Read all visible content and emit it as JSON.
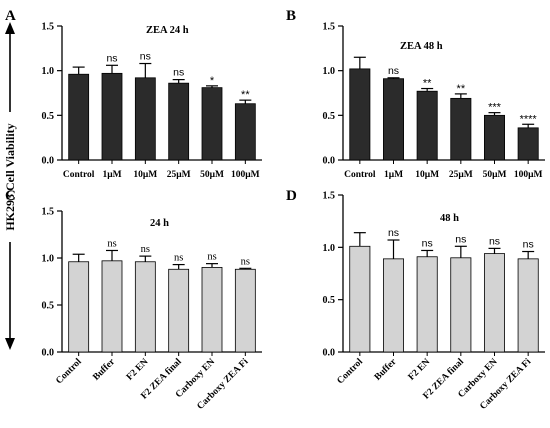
{
  "figure": {
    "ylabel": "HK293 Cell Viability",
    "bar_colors": {
      "dark": "#2b2b2b",
      "light": "#d3d3d3",
      "axis": "#000000"
    }
  },
  "chart_data": [
    {
      "panel": "A",
      "type": "bar",
      "title": "ZEA 24 h",
      "categories": [
        "Control",
        "1μM",
        "10μM",
        "25μM",
        "50μM",
        "100μM"
      ],
      "values": [
        0.96,
        0.97,
        0.92,
        0.86,
        0.81,
        0.63
      ],
      "errors": [
        0.08,
        0.09,
        0.16,
        0.04,
        0.02,
        0.04
      ],
      "significance": [
        "",
        "ns",
        "ns",
        "ns",
        "*",
        "**"
      ],
      "ylim": [
        0,
        1.5
      ],
      "yticks": [
        "0.0",
        "0.5",
        "1.0",
        "1.5"
      ],
      "bar_color": "#2b2b2b"
    },
    {
      "panel": "B",
      "type": "bar",
      "title": "ZEA 48 h",
      "categories": [
        "Control",
        "1μM",
        "10μM",
        "25μM",
        "50μM",
        "100μM"
      ],
      "values": [
        1.02,
        0.91,
        0.77,
        0.69,
        0.5,
        0.36
      ],
      "errors": [
        0.13,
        0.01,
        0.03,
        0.05,
        0.03,
        0.04
      ],
      "significance": [
        "",
        "ns",
        "**",
        "**",
        "***",
        "****"
      ],
      "ylim": [
        0,
        1.5
      ],
      "yticks": [
        "0.0",
        "0.5",
        "1.0",
        "1.5"
      ],
      "bar_color": "#2b2b2b"
    },
    {
      "panel": "C",
      "type": "bar",
      "title": "24 h",
      "categories": [
        "Control",
        "Buffer",
        "F2 EN",
        "F2 ZEA final",
        "Carboxy EN",
        "Carboxy ZEA Fi"
      ],
      "values": [
        0.96,
        0.97,
        0.96,
        0.88,
        0.9,
        0.88
      ],
      "errors": [
        0.08,
        0.11,
        0.06,
        0.05,
        0.04,
        0.01
      ],
      "significance": [
        "",
        "ns",
        "ns",
        "ns",
        "ns",
        "ns"
      ],
      "ylim": [
        0,
        1.5
      ],
      "yticks": [
        "0.0",
        "0.5",
        "1.0",
        "1.5"
      ],
      "bar_color": "#d3d3d3"
    },
    {
      "panel": "D",
      "type": "bar",
      "title": "48 h",
      "categories": [
        "Control",
        "Buffer",
        "F2 EN",
        "F2 ZEA final",
        "Carboxy EN",
        "Carboxy ZEA Fi"
      ],
      "values": [
        1.01,
        0.89,
        0.91,
        0.9,
        0.94,
        0.89
      ],
      "errors": [
        0.13,
        0.18,
        0.06,
        0.11,
        0.05,
        0.07
      ],
      "significance": [
        "",
        "ns",
        "ns",
        "ns",
        "ns",
        "ns"
      ],
      "ylim": [
        0,
        1.5
      ],
      "yticks": [
        "0.0",
        "0.5",
        "1.0",
        "1.5"
      ],
      "bar_color": "#d3d3d3"
    }
  ]
}
